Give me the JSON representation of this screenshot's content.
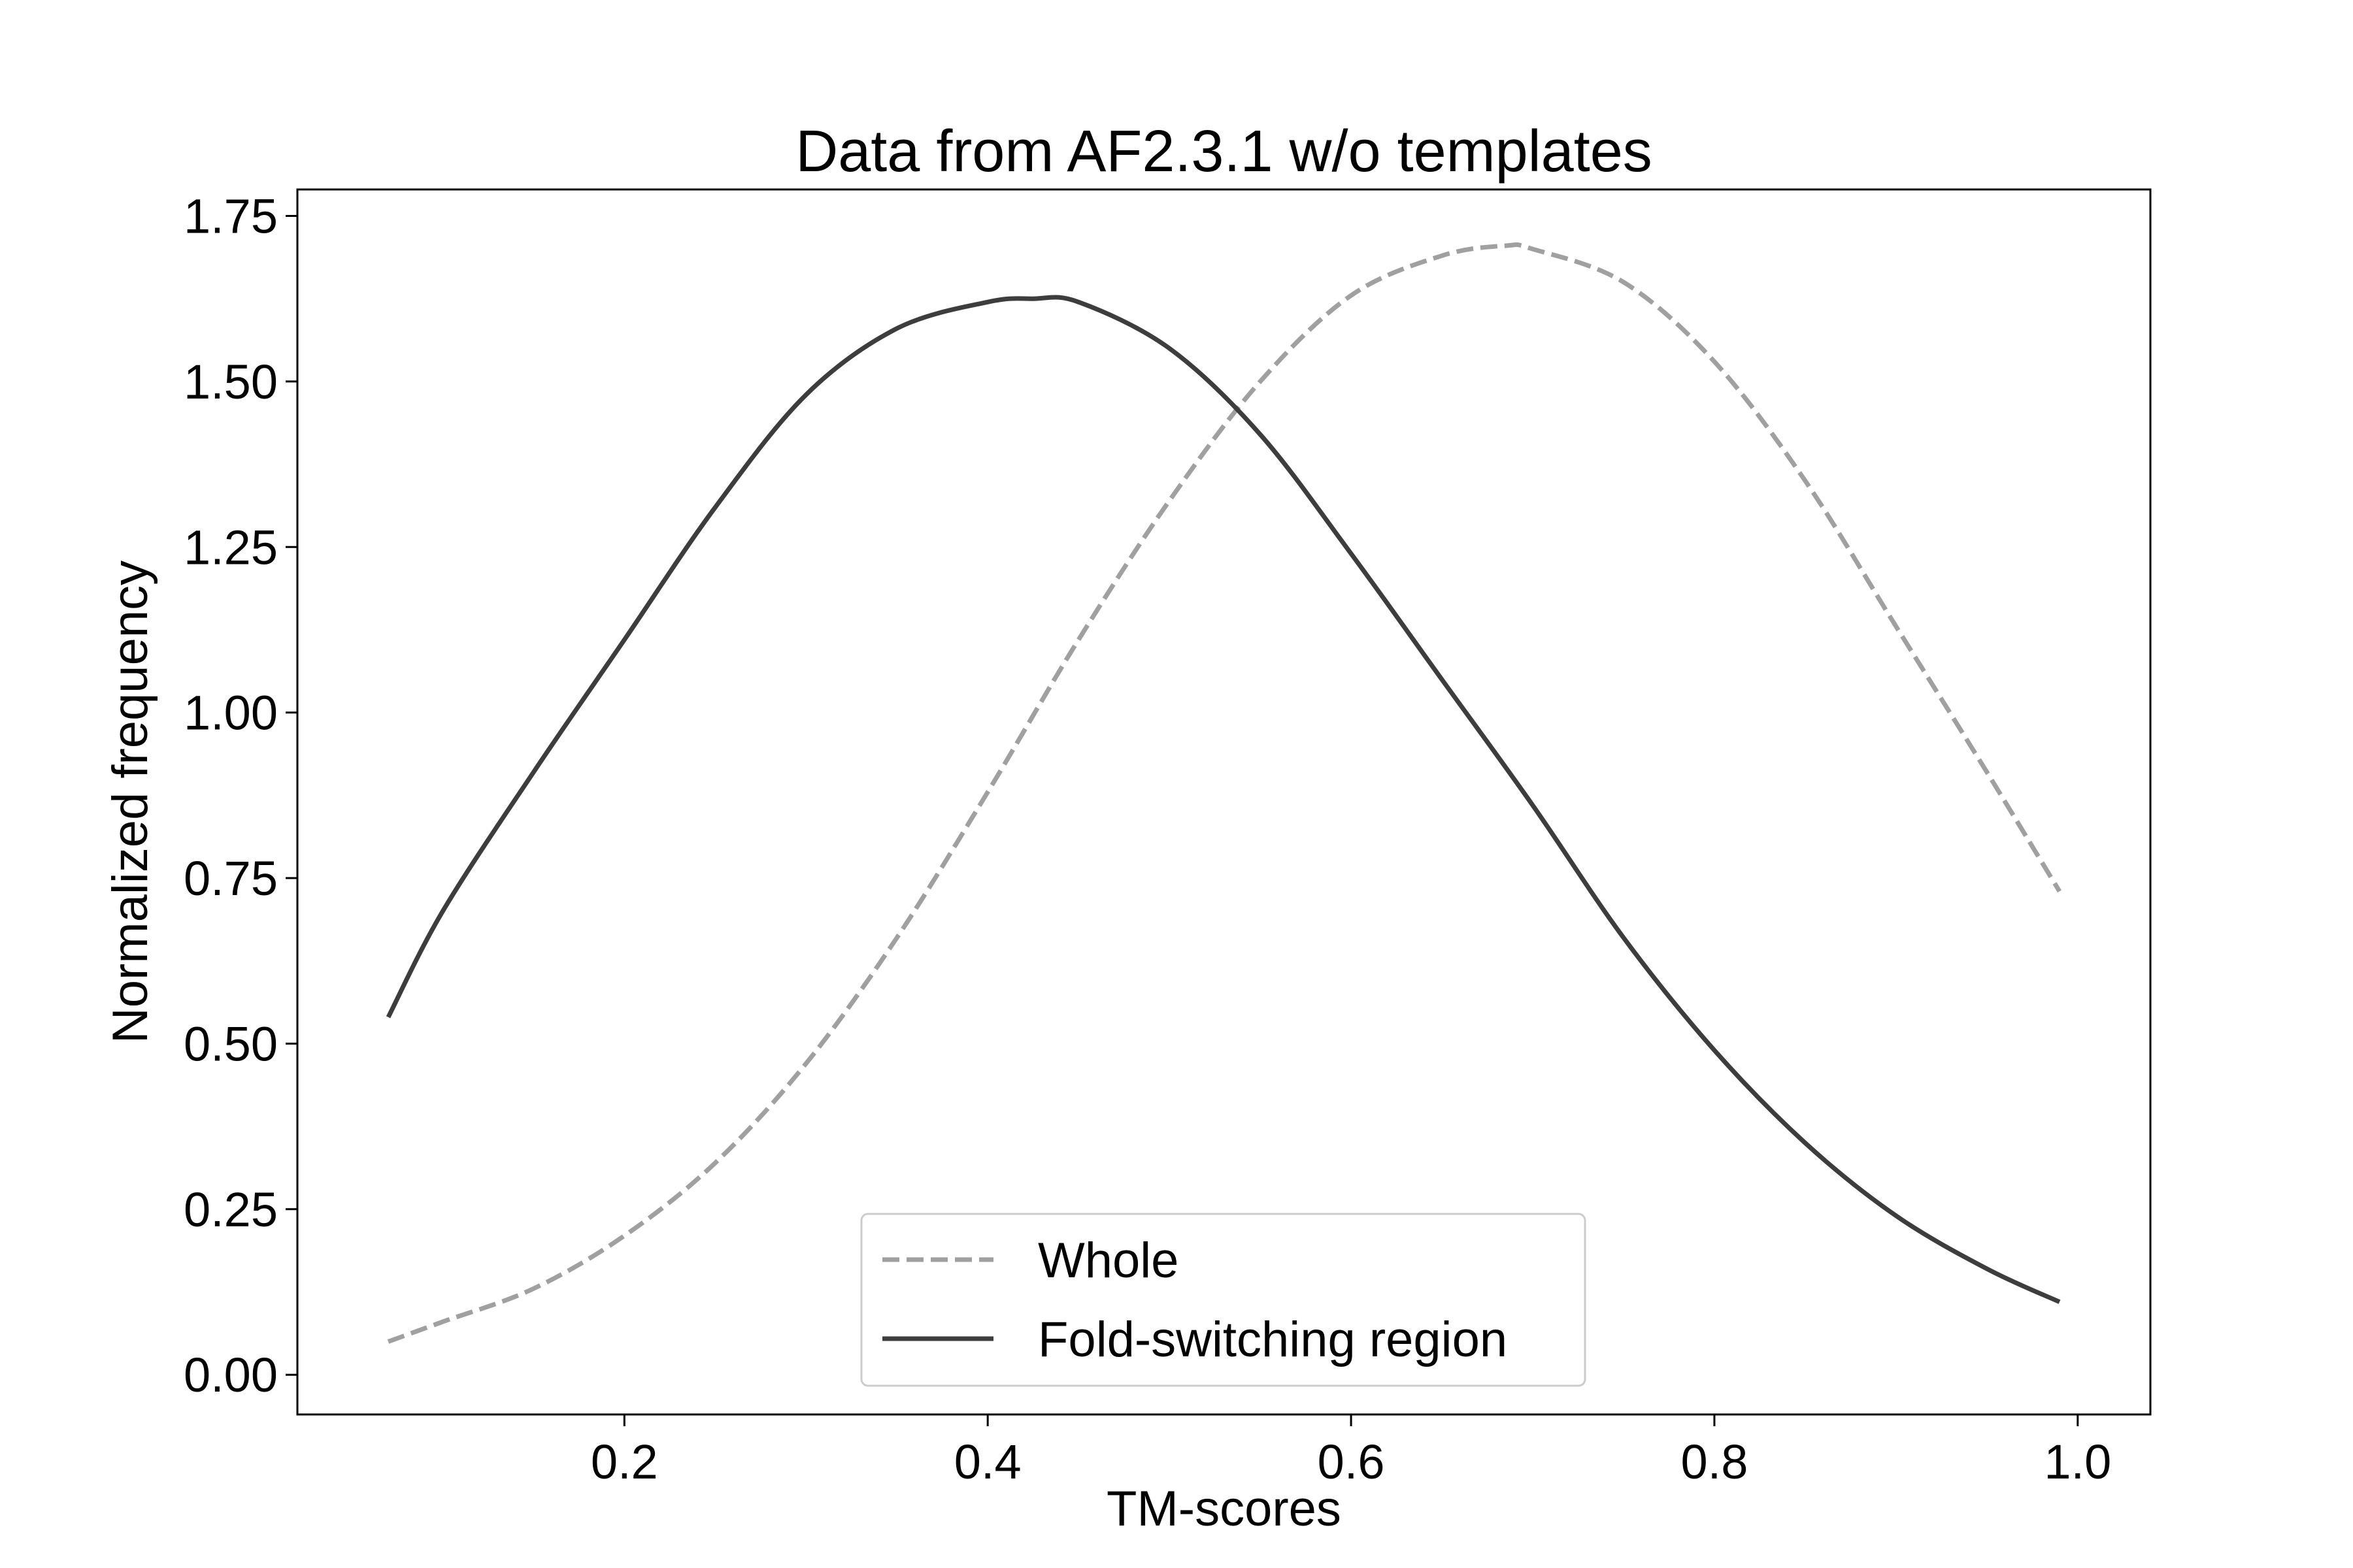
{
  "chart_data": {
    "type": "line",
    "title": "Data from AF2.3.1 w/o templates",
    "xlabel": "TM-scores",
    "ylabel": "Normalized frequency",
    "xlim": [
      0.02,
      1.04
    ],
    "ylim": [
      -0.06,
      1.79
    ],
    "xticks": [
      0.2,
      0.4,
      0.6,
      0.8,
      1.0
    ],
    "xtick_labels": [
      "0.2",
      "0.4",
      "0.6",
      "0.8",
      "1.0"
    ],
    "yticks": [
      0.0,
      0.25,
      0.5,
      0.75,
      1.0,
      1.25,
      1.5,
      1.75
    ],
    "ytick_labels": [
      "0.00",
      "0.25",
      "0.50",
      "0.75",
      "1.00",
      "1.25",
      "1.50",
      "1.75"
    ],
    "grid": false,
    "legend_position": "bottom-center",
    "series": [
      {
        "name": "Whole",
        "style": "dashed",
        "color": "#a0a0a0",
        "x": [
          0.07,
          0.1,
          0.15,
          0.2,
          0.25,
          0.3,
          0.35,
          0.4,
          0.45,
          0.5,
          0.55,
          0.6,
          0.65,
          0.685,
          0.7,
          0.75,
          0.8,
          0.85,
          0.9,
          0.95,
          0.99
        ],
        "y": [
          0.05,
          0.08,
          0.13,
          0.21,
          0.32,
          0.47,
          0.66,
          0.88,
          1.11,
          1.32,
          1.5,
          1.63,
          1.69,
          1.705,
          1.7,
          1.65,
          1.53,
          1.35,
          1.13,
          0.91,
          0.73
        ]
      },
      {
        "name": "Fold-switching region",
        "style": "solid",
        "color": "#3d3d3d",
        "x": [
          0.07,
          0.1,
          0.15,
          0.2,
          0.25,
          0.3,
          0.35,
          0.4,
          0.425,
          0.45,
          0.5,
          0.55,
          0.6,
          0.65,
          0.7,
          0.75,
          0.8,
          0.85,
          0.9,
          0.95,
          0.99
        ],
        "y": [
          0.54,
          0.7,
          0.91,
          1.11,
          1.31,
          1.48,
          1.58,
          1.62,
          1.625,
          1.62,
          1.55,
          1.42,
          1.24,
          1.05,
          0.86,
          0.66,
          0.49,
          0.35,
          0.24,
          0.16,
          0.11
        ]
      }
    ]
  }
}
